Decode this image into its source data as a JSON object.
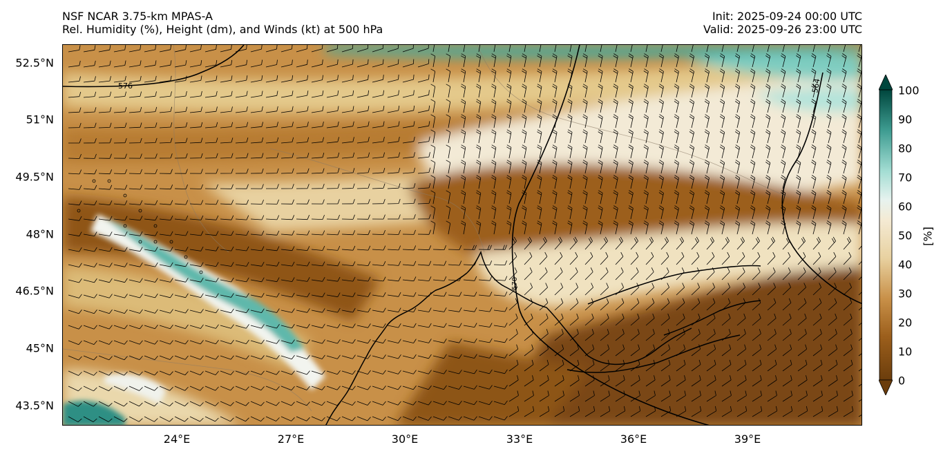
{
  "header": {
    "model": "NSF NCAR 3.75-km MPAS-A",
    "fields": "Rel. Humidity (%), Height (dm), and Winds (kt) at 500 hPa",
    "init": "Init: 2025-09-24 00:00 UTC",
    "valid": "Valid: 2025-09-26 23:00 UTC"
  },
  "map": {
    "lat_labels": [
      "52.5°N",
      "51°N",
      "49.5°N",
      "48°N",
      "46.5°N",
      "45°N",
      "43.5°N"
    ],
    "lon_labels": [
      "24°E",
      "27°E",
      "30°E",
      "33°E",
      "36°E",
      "39°E"
    ],
    "lat_range": [
      43.0,
      53.0
    ],
    "lon_range": [
      21.0,
      42.0
    ],
    "contour_labels": [
      "576",
      "564",
      "570"
    ]
  },
  "colorbar": {
    "ticks": [
      "0",
      "10",
      "20",
      "30",
      "40",
      "50",
      "60",
      "70",
      "80",
      "90",
      "100"
    ],
    "unit": "[%]",
    "colors": {
      "dry": "#6b3d0c",
      "mid_dry": "#b57a2e",
      "tan": "#dfc07e",
      "pale": "#f4ead3",
      "neutral": "#f2f4ef",
      "teal_light": "#a3ddd3",
      "teal": "#3e9c91",
      "teal_dark": "#00463d"
    }
  }
}
